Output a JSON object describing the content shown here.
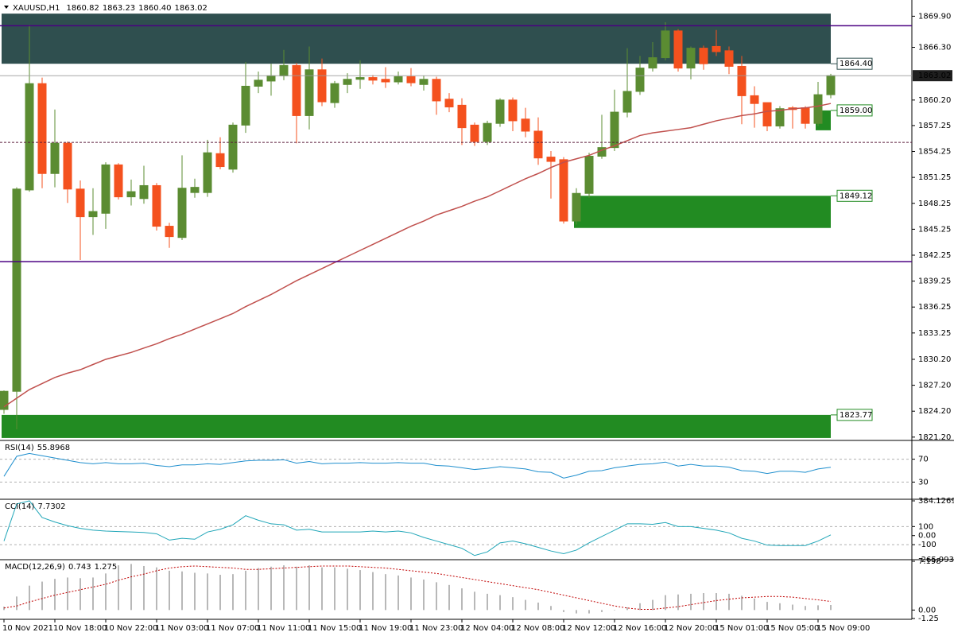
{
  "chart_data": [
    {
      "type": "candlestick",
      "title": "XAUUSD,H1",
      "ohlc_labels": [
        "1860.82",
        "1863.23",
        "1860.40",
        "1863.02"
      ],
      "categories": [
        "10 Nov 2021",
        null,
        null,
        null,
        "10 Nov 18:00",
        null,
        null,
        null,
        "10 Nov 22:00",
        null,
        null,
        null,
        "11 Nov 03:00",
        null,
        null,
        null,
        "11 Nov 07:00",
        null,
        null,
        null,
        "11 Nov 11:00",
        null,
        null,
        null,
        "11 Nov 15:00",
        null,
        null,
        null,
        "11 Nov 19:00",
        null,
        null,
        null,
        "11 Nov 23:00",
        null,
        null,
        null,
        "12 Nov 04:00",
        null,
        null,
        null,
        "12 Nov 08:00",
        null,
        null,
        null,
        "12 Nov 12:00",
        null,
        null,
        null,
        "12 Nov 16:00",
        null,
        null,
        null,
        "12 Nov 20:00",
        null,
        null,
        null,
        "15 Nov 01:00",
        null,
        null,
        null,
        "15 Nov 05:00",
        null,
        null,
        null,
        "15 Nov 09:00",
        null
      ],
      "open": [
        1824.4,
        1826.5,
        1849.8,
        1862.1,
        1851.7,
        1855.2,
        1849.9,
        1846.7,
        1847.1,
        1852.7,
        1849.0,
        1848.8,
        1850.3,
        1845.6,
        1844.3,
        1849.5,
        1849.5,
        1854.0,
        1852.2,
        1857.3,
        1861.8,
        1862.4,
        1863.0,
        1864.2,
        1858.4,
        1863.7,
        1859.9,
        1862.0,
        1862.6,
        1862.8,
        1862.6,
        1862.3,
        1862.9,
        1862.0,
        1862.6,
        1860.3,
        1859.6,
        1857.3,
        1855.4,
        1857.5,
        1860.2,
        1858.0,
        1856.6,
        1853.6,
        1853.3,
        1846.2,
        1849.4,
        1853.7,
        1854.7,
        1858.8,
        1861.2,
        1863.9,
        1865.1,
        1868.2,
        1863.9,
        1866.2,
        1866.4,
        1865.9,
        1864.1,
        1860.7,
        1859.9,
        1857.2,
        1859.3,
        1859.3,
        1857.5,
        1860.82
      ],
      "high": [
        1826.6,
        1850.1,
        1868.9,
        1862.8,
        1859.1,
        1855.4,
        1850.9,
        1850.0,
        1853.0,
        1852.9,
        1851.0,
        1852.6,
        1850.6,
        1846.0,
        1853.8,
        1851.1,
        1855.6,
        1855.9,
        1857.6,
        1864.6,
        1863.5,
        1864.4,
        1866.0,
        1864.5,
        1866.4,
        1865.0,
        1862.4,
        1863.3,
        1864.8,
        1863.1,
        1864.0,
        1863.5,
        1863.9,
        1863.0,
        1862.9,
        1861.0,
        1860.4,
        1857.6,
        1857.8,
        1860.4,
        1860.5,
        1859.3,
        1858.2,
        1854.3,
        1853.6,
        1850.0,
        1854.1,
        1858.5,
        1861.4,
        1866.2,
        1865.3,
        1866.9,
        1869.2,
        1868.4,
        1866.4,
        1866.5,
        1868.3,
        1866.4,
        1865.3,
        1861.8,
        1859.9,
        1859.5,
        1859.5,
        1859.5,
        1862.3,
        1863.23
      ],
      "low": [
        1823.9,
        1822.1,
        1849.6,
        1850.0,
        1850.1,
        1848.3,
        1841.7,
        1844.6,
        1845.3,
        1848.7,
        1848.0,
        1848.2,
        1845.1,
        1843.1,
        1844.0,
        1848.9,
        1849.0,
        1852.2,
        1851.8,
        1856.4,
        1861.0,
        1860.7,
        1862.5,
        1855.2,
        1856.8,
        1859.5,
        1859.3,
        1861.0,
        1861.5,
        1862.0,
        1861.6,
        1862.0,
        1861.8,
        1861.3,
        1858.5,
        1858.8,
        1855.0,
        1854.9,
        1855.0,
        1857.1,
        1856.6,
        1855.9,
        1852.7,
        1848.8,
        1845.9,
        1845.8,
        1848.9,
        1853.4,
        1854.3,
        1858.2,
        1860.8,
        1863.5,
        1864.8,
        1863.5,
        1862.6,
        1863.7,
        1865.3,
        1863.2,
        1857.4,
        1857.0,
        1856.6,
        1856.9,
        1856.9,
        1856.9,
        1857.2,
        1860.4
      ],
      "close": [
        1826.5,
        1849.9,
        1862.1,
        1851.7,
        1855.2,
        1849.9,
        1846.7,
        1847.3,
        1852.7,
        1849.0,
        1849.6,
        1850.3,
        1845.6,
        1844.4,
        1850.0,
        1850.1,
        1854.1,
        1852.5,
        1857.3,
        1861.8,
        1862.5,
        1863.0,
        1864.2,
        1858.4,
        1863.7,
        1860.0,
        1862.1,
        1862.6,
        1862.8,
        1862.5,
        1862.3,
        1862.9,
        1862.2,
        1862.6,
        1860.1,
        1859.4,
        1857.0,
        1855.4,
        1857.5,
        1860.2,
        1857.8,
        1856.6,
        1853.5,
        1853.1,
        1846.2,
        1849.4,
        1853.7,
        1854.7,
        1858.8,
        1861.2,
        1863.9,
        1865.1,
        1868.2,
        1863.9,
        1866.2,
        1864.4,
        1865.8,
        1864.1,
        1860.7,
        1859.8,
        1857.2,
        1859.2,
        1859.1,
        1857.5,
        1860.82,
        1863.02
      ],
      "up_color": "#5b8c32",
      "down_color": "#f4511e",
      "ma": {
        "color": "#c0504d",
        "values": [
          1824.7,
          1825.7,
          1826.7,
          1827.4,
          1828.1,
          1828.6,
          1829.0,
          1829.6,
          1830.2,
          1830.6,
          1831.0,
          1831.5,
          1832.0,
          1832.6,
          1833.1,
          1833.7,
          1834.3,
          1834.9,
          1835.5,
          1836.3,
          1837.0,
          1837.7,
          1838.5,
          1839.3,
          1840.0,
          1840.7,
          1841.4,
          1842.1,
          1842.8,
          1843.5,
          1844.2,
          1844.9,
          1845.6,
          1846.2,
          1846.9,
          1847.4,
          1847.9,
          1848.5,
          1849.0,
          1849.7,
          1850.4,
          1851.1,
          1851.7,
          1852.4,
          1853.0,
          1853.4,
          1853.8,
          1854.4,
          1854.9,
          1855.5,
          1856.1,
          1856.4,
          1856.6,
          1856.8,
          1857.0,
          1857.4,
          1857.8,
          1858.1,
          1858.4,
          1858.6,
          1858.9,
          1859.0,
          1859.2,
          1859.3,
          1859.5,
          1859.8
        ]
      },
      "ylim": [
        1821.0,
        1871.5
      ],
      "yticks": [
        {
          "value": 1869.9,
          "label": "1869.90"
        },
        {
          "value": 1866.3,
          "label": "1866.30"
        },
        {
          "value": 1860.2,
          "label": "1860.20"
        },
        1857.25,
        1854.25,
        1851.25,
        1848.25,
        1845.25,
        1842.25,
        1839.25,
        1836.25,
        1833.25,
        {
          "value": 1830.2,
          "label": "1830.20"
        },
        {
          "value": 1827.2,
          "label": "1827.20"
        },
        {
          "value": 1824.2,
          "label": "1824.20"
        },
        {
          "value": 1821.2,
          "label": "1821.20"
        }
      ],
      "lines": [
        {
          "value": 1868.8,
          "color": "#4b0082",
          "dashed": false
        },
        {
          "value": 1841.5,
          "color": "#4b0082",
          "dashed": false
        },
        {
          "value": 1855.3,
          "color": "#5a1a3a",
          "dashed": true
        }
      ],
      "zones": [
        {
          "value": 1864.4,
          "label": "1864.40",
          "to": 1870.2,
          "start": 0,
          "color": "#2f4f4f"
        },
        {
          "value": 1849.12,
          "label": "1849.12",
          "to": 1845.4,
          "start": 45,
          "color": "#228b22"
        },
        {
          "value": 1823.77,
          "label": "1823.77",
          "to": 1821.1,
          "start": 0,
          "color": "#228b22"
        },
        {
          "value": 1859.0,
          "label": "1859.00",
          "to": 1856.7,
          "start": 64,
          "color": "#228b22"
        }
      ]
    },
    {
      "type": "line",
      "title": "RSI(14)",
      "color": "#1f8fce",
      "values": [
        40,
        75,
        80,
        76,
        72,
        68,
        64,
        62,
        64,
        62,
        62,
        63,
        59,
        57,
        60,
        60,
        62,
        61,
        64,
        67,
        68,
        68,
        69,
        63,
        66,
        62,
        63,
        63,
        64,
        63,
        63,
        64,
        63,
        63,
        59,
        58,
        55,
        52,
        54,
        57,
        55,
        53,
        48,
        47,
        37,
        42,
        49,
        50,
        55,
        58,
        61,
        62,
        65,
        58,
        61,
        58,
        58,
        56,
        50,
        49,
        45,
        49,
        49,
        47,
        53,
        55.8968
      ],
      "ylim": [
        0,
        100
      ],
      "yticks": [
        70,
        30
      ],
      "levels": [
        70,
        30
      ]
    },
    {
      "type": "line",
      "title": "CCI(14)",
      "color": "#20a6b8",
      "values": [
        -60,
        350,
        384.1269,
        200,
        150,
        110,
        80,
        60,
        50,
        45,
        40,
        35,
        20,
        -50,
        -30,
        -40,
        40,
        70,
        120,
        220,
        170,
        130,
        120,
        60,
        70,
        40,
        40,
        40,
        40,
        50,
        40,
        50,
        30,
        -20,
        -60,
        -100,
        -140,
        -220,
        -180,
        -80,
        -60,
        -90,
        -130,
        -170,
        -200,
        -160,
        -80,
        -10,
        60,
        130,
        130,
        125,
        145,
        100,
        100,
        80,
        60,
        30,
        -30,
        -60,
        -105,
        -110,
        -110,
        -110,
        -60,
        7.7302
      ],
      "ylim": [
        -265.9934,
        384.1269
      ],
      "yticks": [
        384.1269,
        100,
        {
          "value": 0,
          "label": "0.00"
        },
        -100,
        -265.9934
      ],
      "levels": [
        100,
        -100
      ]
    },
    {
      "type": "macd",
      "title": "MACD(12,26,9)",
      "color": "#b8b8b8",
      "values": [
        0.5,
        2.0,
        3.6,
        4.2,
        4.6,
        4.8,
        4.7,
        4.8,
        5.4,
        6.6,
        6.8,
        6.5,
        6.3,
        5.8,
        5.7,
        5.5,
        5.4,
        5.2,
        5.3,
        5.8,
        6.2,
        6.4,
        6.6,
        6.4,
        6.6,
        6.3,
        6.3,
        6.1,
        5.9,
        5.6,
        5.3,
        5.1,
        4.8,
        4.5,
        4.1,
        3.7,
        3.2,
        2.7,
        2.4,
        2.2,
        1.9,
        1.5,
        1.1,
        0.6,
        -0.3,
        -0.5,
        -0.5,
        -0.3,
        0.0,
        0.4,
        1.0,
        1.5,
        2.2,
        2.3,
        2.4,
        2.5,
        2.5,
        2.4,
        2.1,
        1.7,
        1.2,
        1.0,
        0.8,
        0.6,
        0.7,
        0.743
      ],
      "signal": {
        "color": "#c00000",
        "values": [
          0.3,
          0.6,
          1.2,
          1.7,
          2.2,
          2.6,
          3.0,
          3.4,
          3.8,
          4.4,
          4.9,
          5.3,
          5.8,
          6.2,
          6.4,
          6.5,
          6.4,
          6.3,
          6.2,
          6.0,
          6.0,
          6.1,
          6.2,
          6.3,
          6.4,
          6.5,
          6.5,
          6.5,
          6.4,
          6.3,
          6.2,
          6.0,
          5.8,
          5.6,
          5.4,
          5.1,
          4.8,
          4.5,
          4.2,
          3.9,
          3.6,
          3.3,
          3.0,
          2.6,
          2.2,
          1.8,
          1.4,
          1.0,
          0.6,
          0.3,
          0.1,
          0.1,
          0.3,
          0.5,
          0.8,
          1.1,
          1.4,
          1.6,
          1.8,
          1.9,
          2.0,
          2.0,
          1.9,
          1.7,
          1.5,
          1.275
        ]
      },
      "ylim": [
        -1.25,
        7.198
      ],
      "yticks": [
        7.198,
        {
          "value": 0,
          "label": "0.00"
        },
        -1.25
      ]
    }
  ]
}
